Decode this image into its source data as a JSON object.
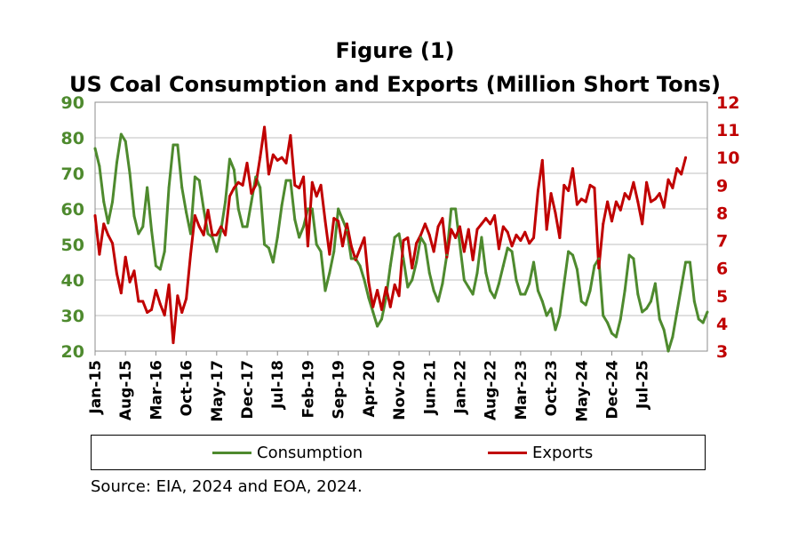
{
  "figure_label": "Figure (1)",
  "title": "US Coal Consumption and Exports (Million Short Tons)",
  "source": "Source: EIA, 2024 and EOA, 2024.",
  "colors": {
    "consumption": "#4e8a2e",
    "exports": "#c00000",
    "grid": "#bfbfbf"
  },
  "chart_data": {
    "type": "line",
    "title": "US Coal Consumption and Exports (Million Short Tons)",
    "x_start": "Jan-15",
    "x_tick_labels": [
      "Jan-15",
      "Aug-15",
      "Mar-16",
      "Oct-16",
      "May-17",
      "Dec-17",
      "Jul-18",
      "Feb-19",
      "Sep-19",
      "Apr-20",
      "Nov-20",
      "Jun-21",
      "Jan-22",
      "Aug-22",
      "Mar-23",
      "Oct-23",
      "May-24",
      "Dec-24",
      "Jul-25"
    ],
    "y_left": {
      "min": 20,
      "max": 90,
      "ticks": [
        20,
        30,
        40,
        50,
        60,
        70,
        80,
        90
      ],
      "color": "#4e8a2e"
    },
    "y_right": {
      "min": 3,
      "max": 12,
      "ticks": [
        3,
        4,
        5,
        6,
        7,
        8,
        9,
        10,
        11,
        12
      ],
      "color": "#c00000"
    },
    "grid": true,
    "legend_position": "bottom",
    "series": [
      {
        "name": "Consumption",
        "axis": "left",
        "color": "#4e8a2e",
        "values": [
          77,
          72,
          62,
          56,
          62,
          73,
          81,
          79,
          70,
          58,
          53,
          55,
          66,
          54,
          44,
          43,
          48,
          66,
          78,
          78,
          66,
          59,
          53,
          69,
          68,
          60,
          53,
          52,
          48,
          54,
          62,
          74,
          71,
          60,
          55,
          55,
          62,
          69,
          66,
          50,
          49,
          45,
          52,
          61,
          68,
          68,
          57,
          52,
          55,
          60,
          60,
          50,
          48,
          37,
          42,
          48,
          60,
          57,
          54,
          46,
          46,
          44,
          40,
          35,
          31,
          27,
          29,
          35,
          44,
          52,
          53,
          46,
          38,
          40,
          45,
          52,
          50,
          42,
          37,
          34,
          39,
          47,
          60,
          60,
          50,
          40,
          38,
          36,
          42,
          52,
          42,
          37,
          35,
          39,
          44,
          49,
          48,
          40,
          36,
          36,
          39,
          45,
          37,
          34,
          30,
          32,
          26,
          30,
          39,
          48,
          47,
          43,
          34,
          33,
          37,
          44,
          46,
          30,
          28,
          25,
          24,
          29,
          37,
          47,
          46,
          36,
          31,
          32,
          34,
          39,
          29,
          26,
          20,
          24,
          31,
          38,
          45,
          45,
          34,
          29,
          28,
          31
        ]
      },
      {
        "name": "Exports",
        "axis": "right",
        "color": "#c00000",
        "values": [
          7.9,
          6.5,
          7.6,
          7.2,
          6.9,
          5.8,
          5.1,
          6.4,
          5.5,
          5.9,
          4.8,
          4.8,
          4.4,
          4.5,
          5.2,
          4.7,
          4.3,
          5.4,
          3.3,
          5.0,
          4.4,
          4.9,
          6.5,
          7.9,
          7.5,
          7.2,
          8.1,
          7.2,
          7.2,
          7.5,
          7.2,
          8.6,
          8.9,
          9.1,
          9.0,
          9.8,
          8.7,
          9.0,
          10.0,
          11.1,
          9.4,
          10.1,
          9.9,
          10.0,
          9.8,
          10.8,
          9.0,
          8.9,
          9.3,
          6.8,
          9.1,
          8.6,
          9.0,
          7.7,
          6.5,
          7.8,
          7.7,
          6.8,
          7.6,
          6.8,
          6.3,
          6.7,
          7.1,
          5.5,
          4.6,
          5.2,
          4.5,
          5.3,
          4.6,
          5.4,
          5.0,
          7.0,
          7.1,
          6.0,
          6.9,
          7.2,
          7.6,
          7.2,
          6.6,
          7.5,
          7.8,
          6.4,
          7.4,
          7.1,
          7.5,
          6.6,
          7.4,
          6.3,
          7.4,
          7.6,
          7.8,
          7.6,
          7.9,
          6.7,
          7.5,
          7.3,
          6.8,
          7.2,
          7.0,
          7.3,
          6.9,
          7.1,
          8.8,
          9.9,
          7.4,
          8.7,
          8.0,
          7.1,
          9.0,
          8.8,
          9.6,
          8.3,
          8.5,
          8.4,
          9.0,
          8.9,
          6.0,
          7.6,
          8.4,
          7.7,
          8.4,
          8.1,
          8.7,
          8.5,
          9.1,
          8.4,
          7.6,
          9.1,
          8.4,
          8.5,
          8.7,
          8.2,
          9.2,
          8.9,
          9.6,
          9.4,
          10.0
        ]
      }
    ]
  }
}
